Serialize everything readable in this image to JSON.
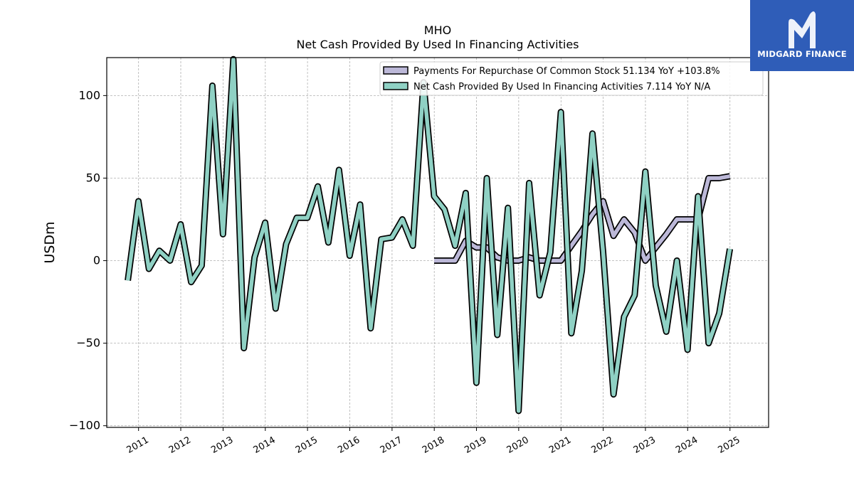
{
  "brand": {
    "name": "MIDGARD FINANCE",
    "logo_icon": "midgard-m-logo-icon",
    "background": "#2f5db8"
  },
  "chart_data": {
    "type": "line",
    "title": "MHO",
    "subtitle": "Net Cash Provided By Used In Financing Activities",
    "ylabel": "USDm",
    "xlabel": "",
    "ylim": [
      -101,
      123
    ],
    "xlim": [
      "2010-04-01",
      "2025-12-01"
    ],
    "yticks": [
      100,
      50,
      0,
      -50,
      -100
    ],
    "ytick_labels": [
      "100",
      "50",
      "0",
      "−50",
      "−100"
    ],
    "xtick_labels": [
      "2011",
      "2012",
      "2013",
      "2014",
      "2015",
      "2016",
      "2017",
      "2018",
      "2019",
      "2020",
      "2021",
      "2022",
      "2023",
      "2024",
      "2025"
    ],
    "grid": true,
    "legend_position": "top-right",
    "series": [
      {
        "name": "Payments For Repurchase Of Common Stock",
        "legend_label": "Payments For Repurchase Of Common Stock  51.134 YoY +103.8%",
        "color": "#bcb8d8",
        "points": [
          [
            "2017-12-31",
            0
          ],
          [
            "2018-03-31",
            0
          ],
          [
            "2018-06-30",
            0
          ],
          [
            "2018-09-30",
            12
          ],
          [
            "2018-12-31",
            8
          ],
          [
            "2019-03-31",
            8
          ],
          [
            "2019-06-30",
            2
          ],
          [
            "2019-09-30",
            0
          ],
          [
            "2019-12-31",
            0
          ],
          [
            "2020-03-31",
            2
          ],
          [
            "2020-06-30",
            0
          ],
          [
            "2020-09-30",
            0
          ],
          [
            "2020-12-31",
            0
          ],
          [
            "2021-03-31",
            9
          ],
          [
            "2021-06-30",
            18
          ],
          [
            "2021-09-30",
            28
          ],
          [
            "2021-12-31",
            36
          ],
          [
            "2022-03-31",
            15
          ],
          [
            "2022-06-30",
            25
          ],
          [
            "2022-09-30",
            17
          ],
          [
            "2022-12-31",
            0
          ],
          [
            "2023-03-31",
            8
          ],
          [
            "2023-06-30",
            16
          ],
          [
            "2023-09-30",
            25
          ],
          [
            "2023-12-31",
            25
          ],
          [
            "2024-03-31",
            25
          ],
          [
            "2024-06-30",
            50
          ],
          [
            "2024-09-30",
            50
          ],
          [
            "2024-12-31",
            51.134
          ]
        ]
      },
      {
        "name": "Net Cash Provided By Used In Financing Activities",
        "legend_label": "Net Cash Provided By Used In Financing Activities  7.114 YoY N/A",
        "color": "#8fd1c4",
        "points": [
          [
            "2010-09-30",
            -12
          ],
          [
            "2010-12-31",
            36
          ],
          [
            "2011-03-31",
            -5
          ],
          [
            "2011-06-30",
            6
          ],
          [
            "2011-09-30",
            0
          ],
          [
            "2011-12-31",
            22
          ],
          [
            "2012-03-31",
            -13
          ],
          [
            "2012-06-30",
            -3
          ],
          [
            "2012-09-30",
            106
          ],
          [
            "2012-12-31",
            16
          ],
          [
            "2013-03-31",
            122
          ],
          [
            "2013-06-30",
            -53
          ],
          [
            "2013-09-30",
            2
          ],
          [
            "2013-12-31",
            23
          ],
          [
            "2014-03-31",
            -29
          ],
          [
            "2014-06-30",
            10
          ],
          [
            "2014-09-30",
            26
          ],
          [
            "2014-12-31",
            26
          ],
          [
            "2015-03-31",
            45
          ],
          [
            "2015-06-30",
            11
          ],
          [
            "2015-09-30",
            55
          ],
          [
            "2015-12-31",
            3
          ],
          [
            "2016-03-31",
            34
          ],
          [
            "2016-06-30",
            -41
          ],
          [
            "2016-09-30",
            13
          ],
          [
            "2016-12-31",
            14
          ],
          [
            "2017-03-31",
            25
          ],
          [
            "2017-06-30",
            9
          ],
          [
            "2017-09-30",
            108
          ],
          [
            "2017-12-31",
            39
          ],
          [
            "2018-03-31",
            31
          ],
          [
            "2018-06-30",
            9
          ],
          [
            "2018-09-30",
            41
          ],
          [
            "2018-12-31",
            -74
          ],
          [
            "2019-03-31",
            50
          ],
          [
            "2019-06-30",
            -45
          ],
          [
            "2019-09-30",
            32
          ],
          [
            "2019-12-31",
            -91
          ],
          [
            "2020-03-31",
            47
          ],
          [
            "2020-06-30",
            -21
          ],
          [
            "2020-09-30",
            5
          ],
          [
            "2020-12-31",
            90
          ],
          [
            "2021-03-31",
            -44
          ],
          [
            "2021-06-30",
            -6
          ],
          [
            "2021-09-30",
            77
          ],
          [
            "2021-12-31",
            5
          ],
          [
            "2022-03-31",
            -81
          ],
          [
            "2022-06-30",
            -34
          ],
          [
            "2022-09-30",
            -21
          ],
          [
            "2022-12-31",
            54
          ],
          [
            "2023-03-31",
            -15
          ],
          [
            "2023-06-30",
            -43
          ],
          [
            "2023-09-30",
            0
          ],
          [
            "2023-12-31",
            -54
          ],
          [
            "2024-03-31",
            39
          ],
          [
            "2024-06-30",
            -50
          ],
          [
            "2024-09-30",
            -32
          ],
          [
            "2024-12-31",
            7.114
          ]
        ]
      }
    ]
  }
}
